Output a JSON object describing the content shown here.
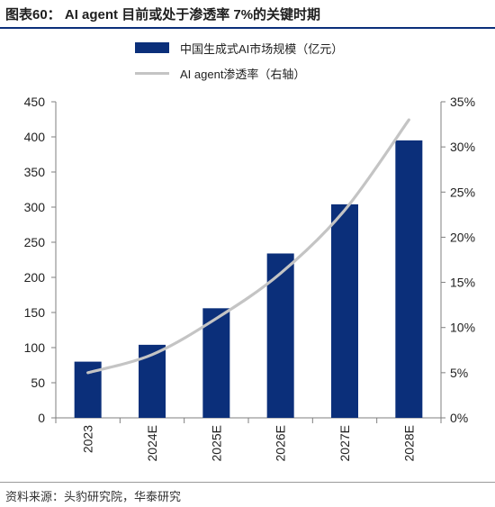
{
  "figure": {
    "label": "图表60：",
    "title": "AI agent 目前或处于渗透率 7%的关键时期",
    "source": "资料来源：头豹研究院，华泰研究"
  },
  "colors": {
    "bar": "#0b2f7a",
    "line": "#c4c4c4",
    "accent": "#0b2f7a"
  },
  "chart_data": {
    "type": "bar",
    "categories": [
      "2023",
      "2024E",
      "2025E",
      "2026E",
      "2027E",
      "2028E"
    ],
    "series": [
      {
        "name": "中国生成式AI市场规模（亿元）",
        "type": "bar",
        "axis": "left",
        "values": [
          80,
          104,
          156,
          234,
          304,
          395
        ]
      },
      {
        "name": "AI agent渗透率（右轴）",
        "type": "line",
        "axis": "right",
        "values": [
          0.05,
          0.07,
          0.11,
          0.16,
          0.23,
          0.33
        ]
      }
    ],
    "y_left": {
      "min": 0,
      "max": 450,
      "ticks": [
        "0",
        "50",
        "100",
        "150",
        "200",
        "250",
        "300",
        "350",
        "400",
        "450"
      ]
    },
    "y_right": {
      "min": 0,
      "max": 0.35,
      "ticks": [
        "0%",
        "5%",
        "10%",
        "15%",
        "20%",
        "25%",
        "30%",
        "35%"
      ]
    },
    "grid": false,
    "legend": "top-center"
  }
}
